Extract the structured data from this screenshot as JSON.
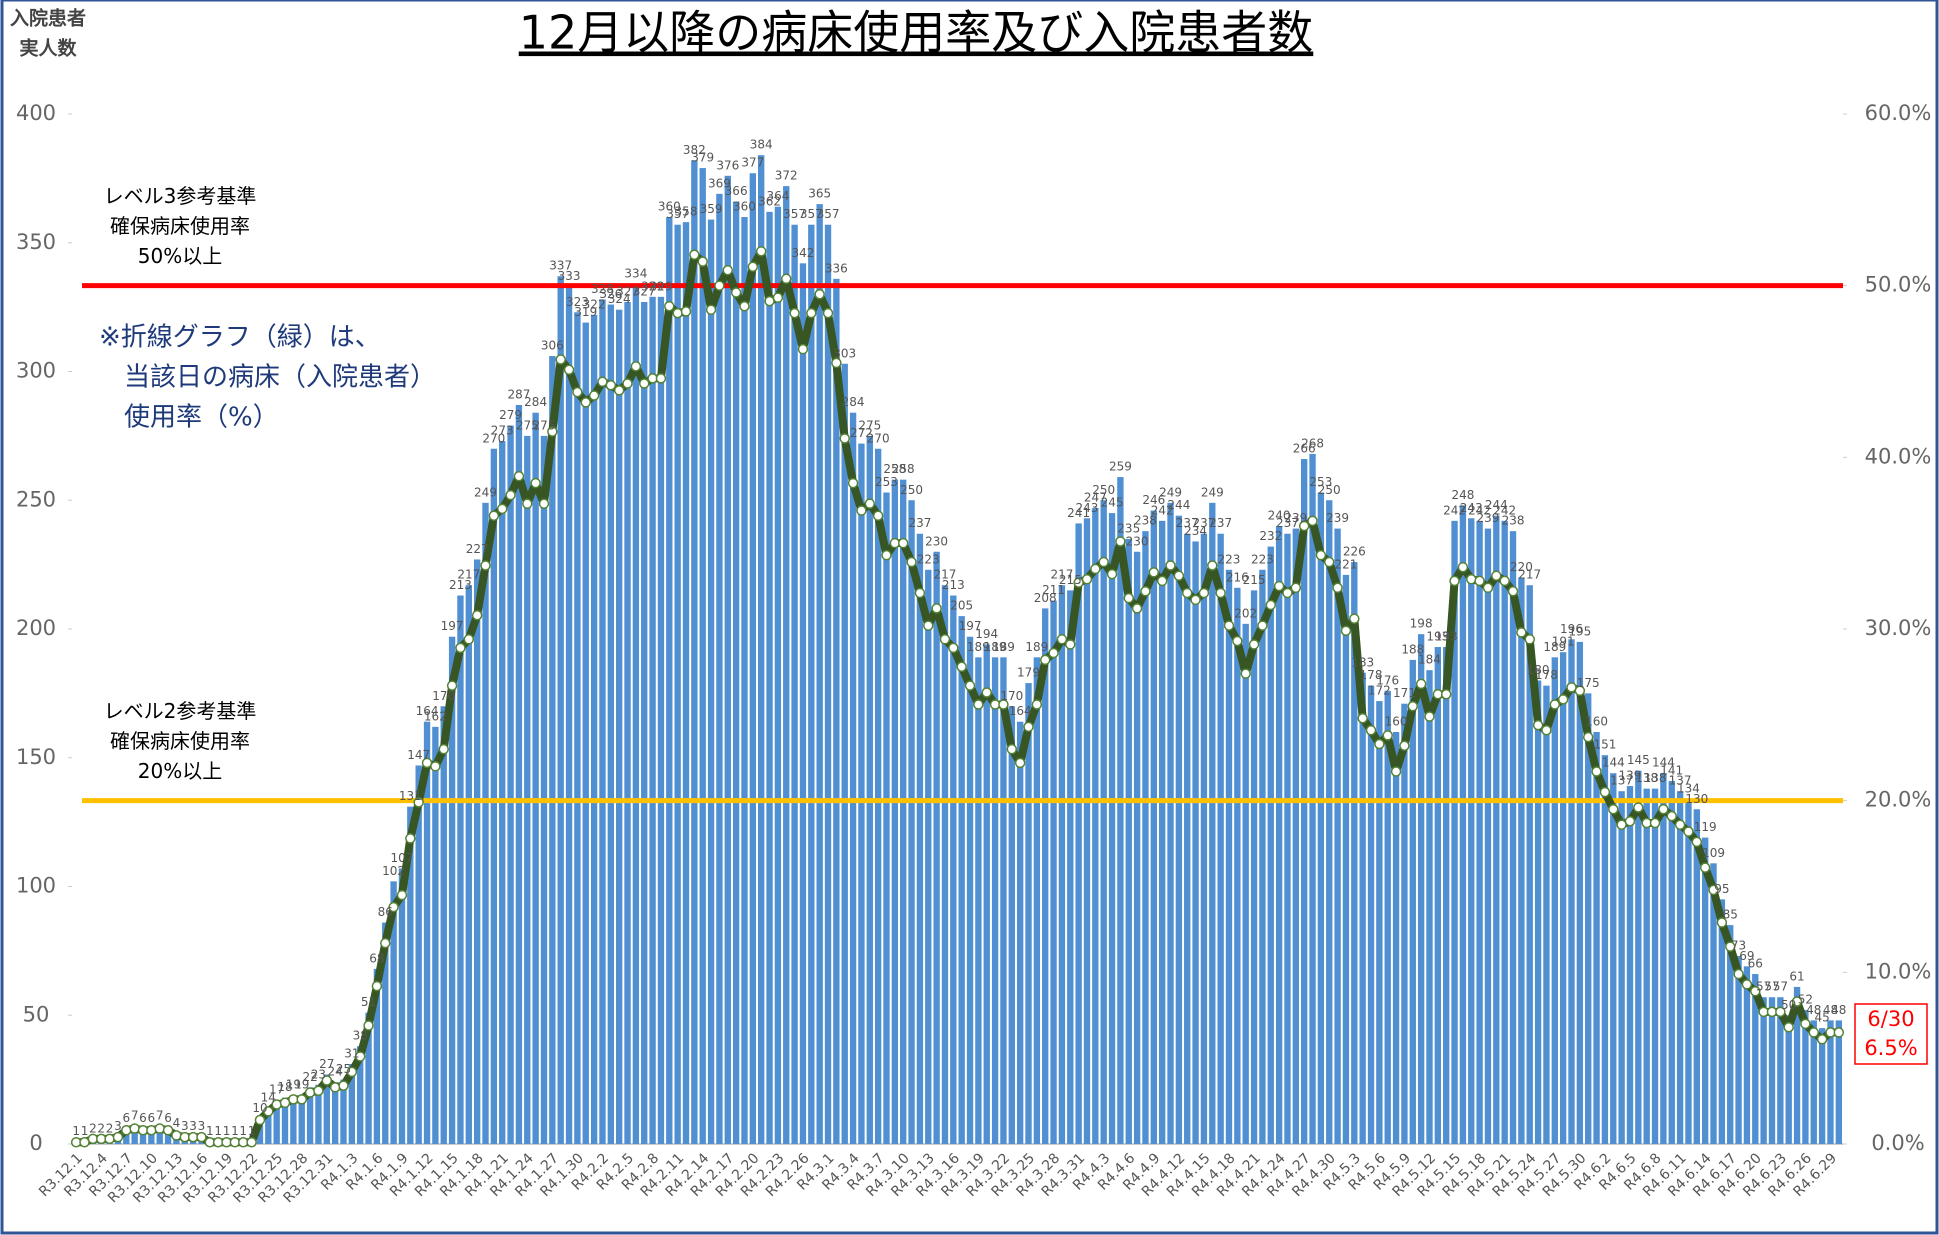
{
  "chart_data": {
    "type": "bar",
    "title": "12月以降の病床使用率及び入院患者数",
    "y_axis_label": [
      "入院患者",
      "実人数"
    ],
    "categories": [
      "R3.12.1",
      null,
      null,
      "R3.12.4",
      null,
      null,
      "R3.12.7",
      null,
      null,
      "R3.12.10",
      null,
      null,
      "R3.12.13",
      null,
      null,
      "R3.12.16",
      null,
      null,
      "R3.12.19",
      null,
      null,
      "R3.12.22",
      null,
      null,
      "R3.12.25",
      null,
      null,
      "R3.12.28",
      null,
      null,
      "R3.12.31",
      null,
      null,
      "R4.1.3",
      null,
      null,
      "R4.1.6",
      null,
      null,
      "R4.1.9",
      null,
      null,
      "R4.1.12",
      null,
      null,
      "R4.1.15",
      null,
      null,
      "R4.1.18",
      null,
      null,
      "R4.1.21",
      null,
      null,
      "R4.1.24",
      null,
      null,
      "R4.1.27",
      null,
      null,
      "R4.1.30",
      null,
      null,
      "R4.2.2",
      null,
      null,
      "R4.2.5",
      null,
      null,
      "R4.2.8",
      null,
      null,
      "R4.2.11",
      null,
      null,
      "R4.2.14",
      null,
      null,
      "R4.2.17",
      null,
      null,
      "R4.2.20",
      null,
      null,
      "R4.2.23",
      null,
      null,
      "R4.2.26",
      null,
      null,
      "R4.3.1",
      null,
      null,
      "R4.3.4",
      null,
      null,
      "R4.3.7",
      null,
      null,
      "R4.3.10",
      null,
      null,
      "R4.3.13",
      null,
      null,
      "R4.3.16",
      null,
      null,
      "R4.3.19",
      null,
      null,
      "R4.3.22",
      null,
      null,
      "R4.3.25",
      null,
      null,
      "R4.3.28",
      null,
      null,
      "R4.3.31",
      null,
      null,
      "R4.4.3",
      null,
      null,
      "R4.4.6",
      null,
      null,
      "R4.4.9",
      null,
      null,
      "R4.4.12",
      null,
      null,
      "R4.4.15",
      null,
      null,
      "R4.4.18",
      null,
      null,
      "R4.4.21",
      null,
      null,
      "R4.4.24",
      null,
      null,
      "R4.4.27",
      null,
      null,
      "R4.4.30",
      null,
      null,
      "R4.5.3",
      null,
      null,
      "R4.5.6",
      null,
      null,
      "R4.5.9",
      null,
      null,
      "R4.5.12",
      null,
      null,
      "R4.5.15",
      null,
      null,
      "R4.5.18",
      null,
      null,
      "R4.5.21",
      null,
      null,
      "R4.5.24",
      null,
      null,
      "R4.5.27",
      null,
      null,
      "R4.5.30",
      null,
      null,
      "R4.6.2",
      null,
      null,
      "R4.6.5",
      null,
      null,
      "R4.6.8",
      null,
      null,
      "R4.6.11",
      null,
      null,
      "R4.6.14",
      null,
      null,
      "R4.6.17",
      null,
      null,
      "R4.6.20",
      null,
      null,
      "R4.6.23",
      null,
      null,
      "R4.6.26",
      null,
      null,
      "R4.6.29",
      null
    ],
    "series": [
      {
        "type": "bar",
        "color": "#4f8fd2",
        "values": [
          1,
          1,
          2,
          2,
          2,
          3,
          6,
          7,
          6,
          6,
          7,
          6,
          4,
          3,
          3,
          3,
          1,
          1,
          1,
          1,
          1,
          1,
          10,
          14,
          17,
          18,
          19,
          19,
          22,
          23,
          27,
          24,
          25,
          31,
          38,
          51,
          68,
          86,
          102,
          107,
          131,
          147,
          164,
          162,
          170,
          197,
          213,
          217,
          227,
          249,
          270,
          273,
          279,
          287,
          275,
          284,
          275,
          306,
          337,
          333,
          323,
          319,
          322,
          328,
          326,
          324,
          327,
          334,
          327,
          329,
          329,
          360,
          357,
          358,
          382,
          379,
          359,
          369,
          376,
          366,
          360,
          377,
          384,
          362,
          364,
          372,
          357,
          342,
          357,
          365,
          357,
          336,
          303,
          284,
          272,
          275,
          270,
          253,
          258,
          258,
          250,
          237,
          223,
          230,
          217,
          213,
          205,
          197,
          189,
          194,
          189,
          189,
          170,
          164,
          179,
          189,
          208,
          211,
          217,
          215,
          241,
          243,
          247,
          250,
          245,
          259,
          235,
          230,
          238,
          246,
          242,
          249,
          244,
          237,
          234,
          237,
          249,
          237,
          223,
          216,
          202,
          215,
          223,
          232,
          240,
          237,
          239,
          266,
          268,
          253,
          250,
          239,
          221,
          226,
          183,
          178,
          172,
          176,
          160,
          171,
          188,
          198,
          184,
          193,
          193,
          242,
          248,
          243,
          242,
          239,
          244,
          242,
          238,
          220,
          217,
          180,
          178,
          189,
          191,
          196,
          195,
          175,
          160,
          151,
          144,
          137,
          139,
          145,
          138,
          138,
          144,
          141,
          137,
          134,
          130,
          119,
          109,
          95,
          85,
          73,
          69,
          66,
          57,
          57,
          57,
          50,
          61,
          52,
          48,
          45,
          48,
          48
        ]
      },
      {
        "type": "line",
        "axis": "y2",
        "color": "#375623",
        "values": [
          0.1,
          0.1,
          0.3,
          0.3,
          0.3,
          0.4,
          0.8,
          0.9,
          0.8,
          0.8,
          0.9,
          0.8,
          0.5,
          0.4,
          0.4,
          0.4,
          0.1,
          0.1,
          0.1,
          0.1,
          0.1,
          0.1,
          1.4,
          1.9,
          2.3,
          2.4,
          2.6,
          2.6,
          3.0,
          3.1,
          3.7,
          3.3,
          3.4,
          4.2,
          5.1,
          6.9,
          9.2,
          11.7,
          13.8,
          14.5,
          17.8,
          19.9,
          22.2,
          22.0,
          23.0,
          26.7,
          28.9,
          29.4,
          30.8,
          33.7,
          36.6,
          37.0,
          37.8,
          38.9,
          37.3,
          38.5,
          37.3,
          41.5,
          45.7,
          45.1,
          43.8,
          43.2,
          43.6,
          44.4,
          44.2,
          43.9,
          44.3,
          45.3,
          44.3,
          44.6,
          44.6,
          48.8,
          48.4,
          48.5,
          51.8,
          51.4,
          48.6,
          50.0,
          50.9,
          49.6,
          48.8,
          51.1,
          52.0,
          49.1,
          49.3,
          50.4,
          48.4,
          46.3,
          48.4,
          49.5,
          48.4,
          45.5,
          41.1,
          38.5,
          36.9,
          37.3,
          36.6,
          34.3,
          35.0,
          35.0,
          33.9,
          32.1,
          30.2,
          31.2,
          29.4,
          28.9,
          27.8,
          26.7,
          25.6,
          26.3,
          25.6,
          25.6,
          23.0,
          22.2,
          24.3,
          25.6,
          28.2,
          28.6,
          29.4,
          29.1,
          32.7,
          32.9,
          33.5,
          33.9,
          33.2,
          35.1,
          31.8,
          31.2,
          32.2,
          33.3,
          32.8,
          33.7,
          33.1,
          32.1,
          31.7,
          32.1,
          33.7,
          32.1,
          30.2,
          29.3,
          27.4,
          29.1,
          30.2,
          31.4,
          32.5,
          32.1,
          32.4,
          36.0,
          36.3,
          34.3,
          33.9,
          32.4,
          29.9,
          30.6,
          24.8,
          24.1,
          23.3,
          23.8,
          21.7,
          23.2,
          25.5,
          26.8,
          24.9,
          26.2,
          26.2,
          32.8,
          33.6,
          32.9,
          32.8,
          32.4,
          33.1,
          32.8,
          32.2,
          29.8,
          29.4,
          24.4,
          24.1,
          25.6,
          25.9,
          26.6,
          26.4,
          23.7,
          21.7,
          20.5,
          19.5,
          18.6,
          18.8,
          19.6,
          18.7,
          18.7,
          19.5,
          19.1,
          18.6,
          18.2,
          17.6,
          16.1,
          14.8,
          12.9,
          11.5,
          9.9,
          9.3,
          8.9,
          7.7,
          7.7,
          7.7,
          6.8,
          8.3,
          7.0,
          6.5,
          6.1,
          6.5,
          6.5
        ]
      }
    ],
    "ylim": [
      0,
      400
    ],
    "yticks": [
      0,
      50,
      100,
      150,
      200,
      250,
      300,
      350,
      400
    ],
    "y2lim": [
      0,
      60
    ],
    "y2ticks": [
      {
        "value": 0,
        "label": "0.0%"
      },
      {
        "value": 10,
        "label": "10.0%"
      },
      {
        "value": 20,
        "label": "20.0%"
      },
      {
        "value": 30,
        "label": "30.0%"
      },
      {
        "value": 40,
        "label": "40.0%"
      },
      {
        "value": 50,
        "label": "50.0%"
      },
      {
        "value": 60,
        "label": "60.0%"
      }
    ],
    "reference_lines": [
      {
        "value": 50,
        "axis": "y2",
        "color": "#ff0000",
        "label": [
          "レベル3参考基準",
          "確保病床使用率",
          "50%以上"
        ]
      },
      {
        "value": 20,
        "axis": "y2",
        "color": "#ffc000",
        "label": [
          "レベル2参考基準",
          "確保病床使用率",
          "20%以上"
        ]
      }
    ],
    "note": [
      "※折線グラフ（緑）は、",
      "当該日の病床（入院患者）",
      "使用率（%）"
    ],
    "callout": [
      "6/30",
      "6.5%"
    ]
  }
}
